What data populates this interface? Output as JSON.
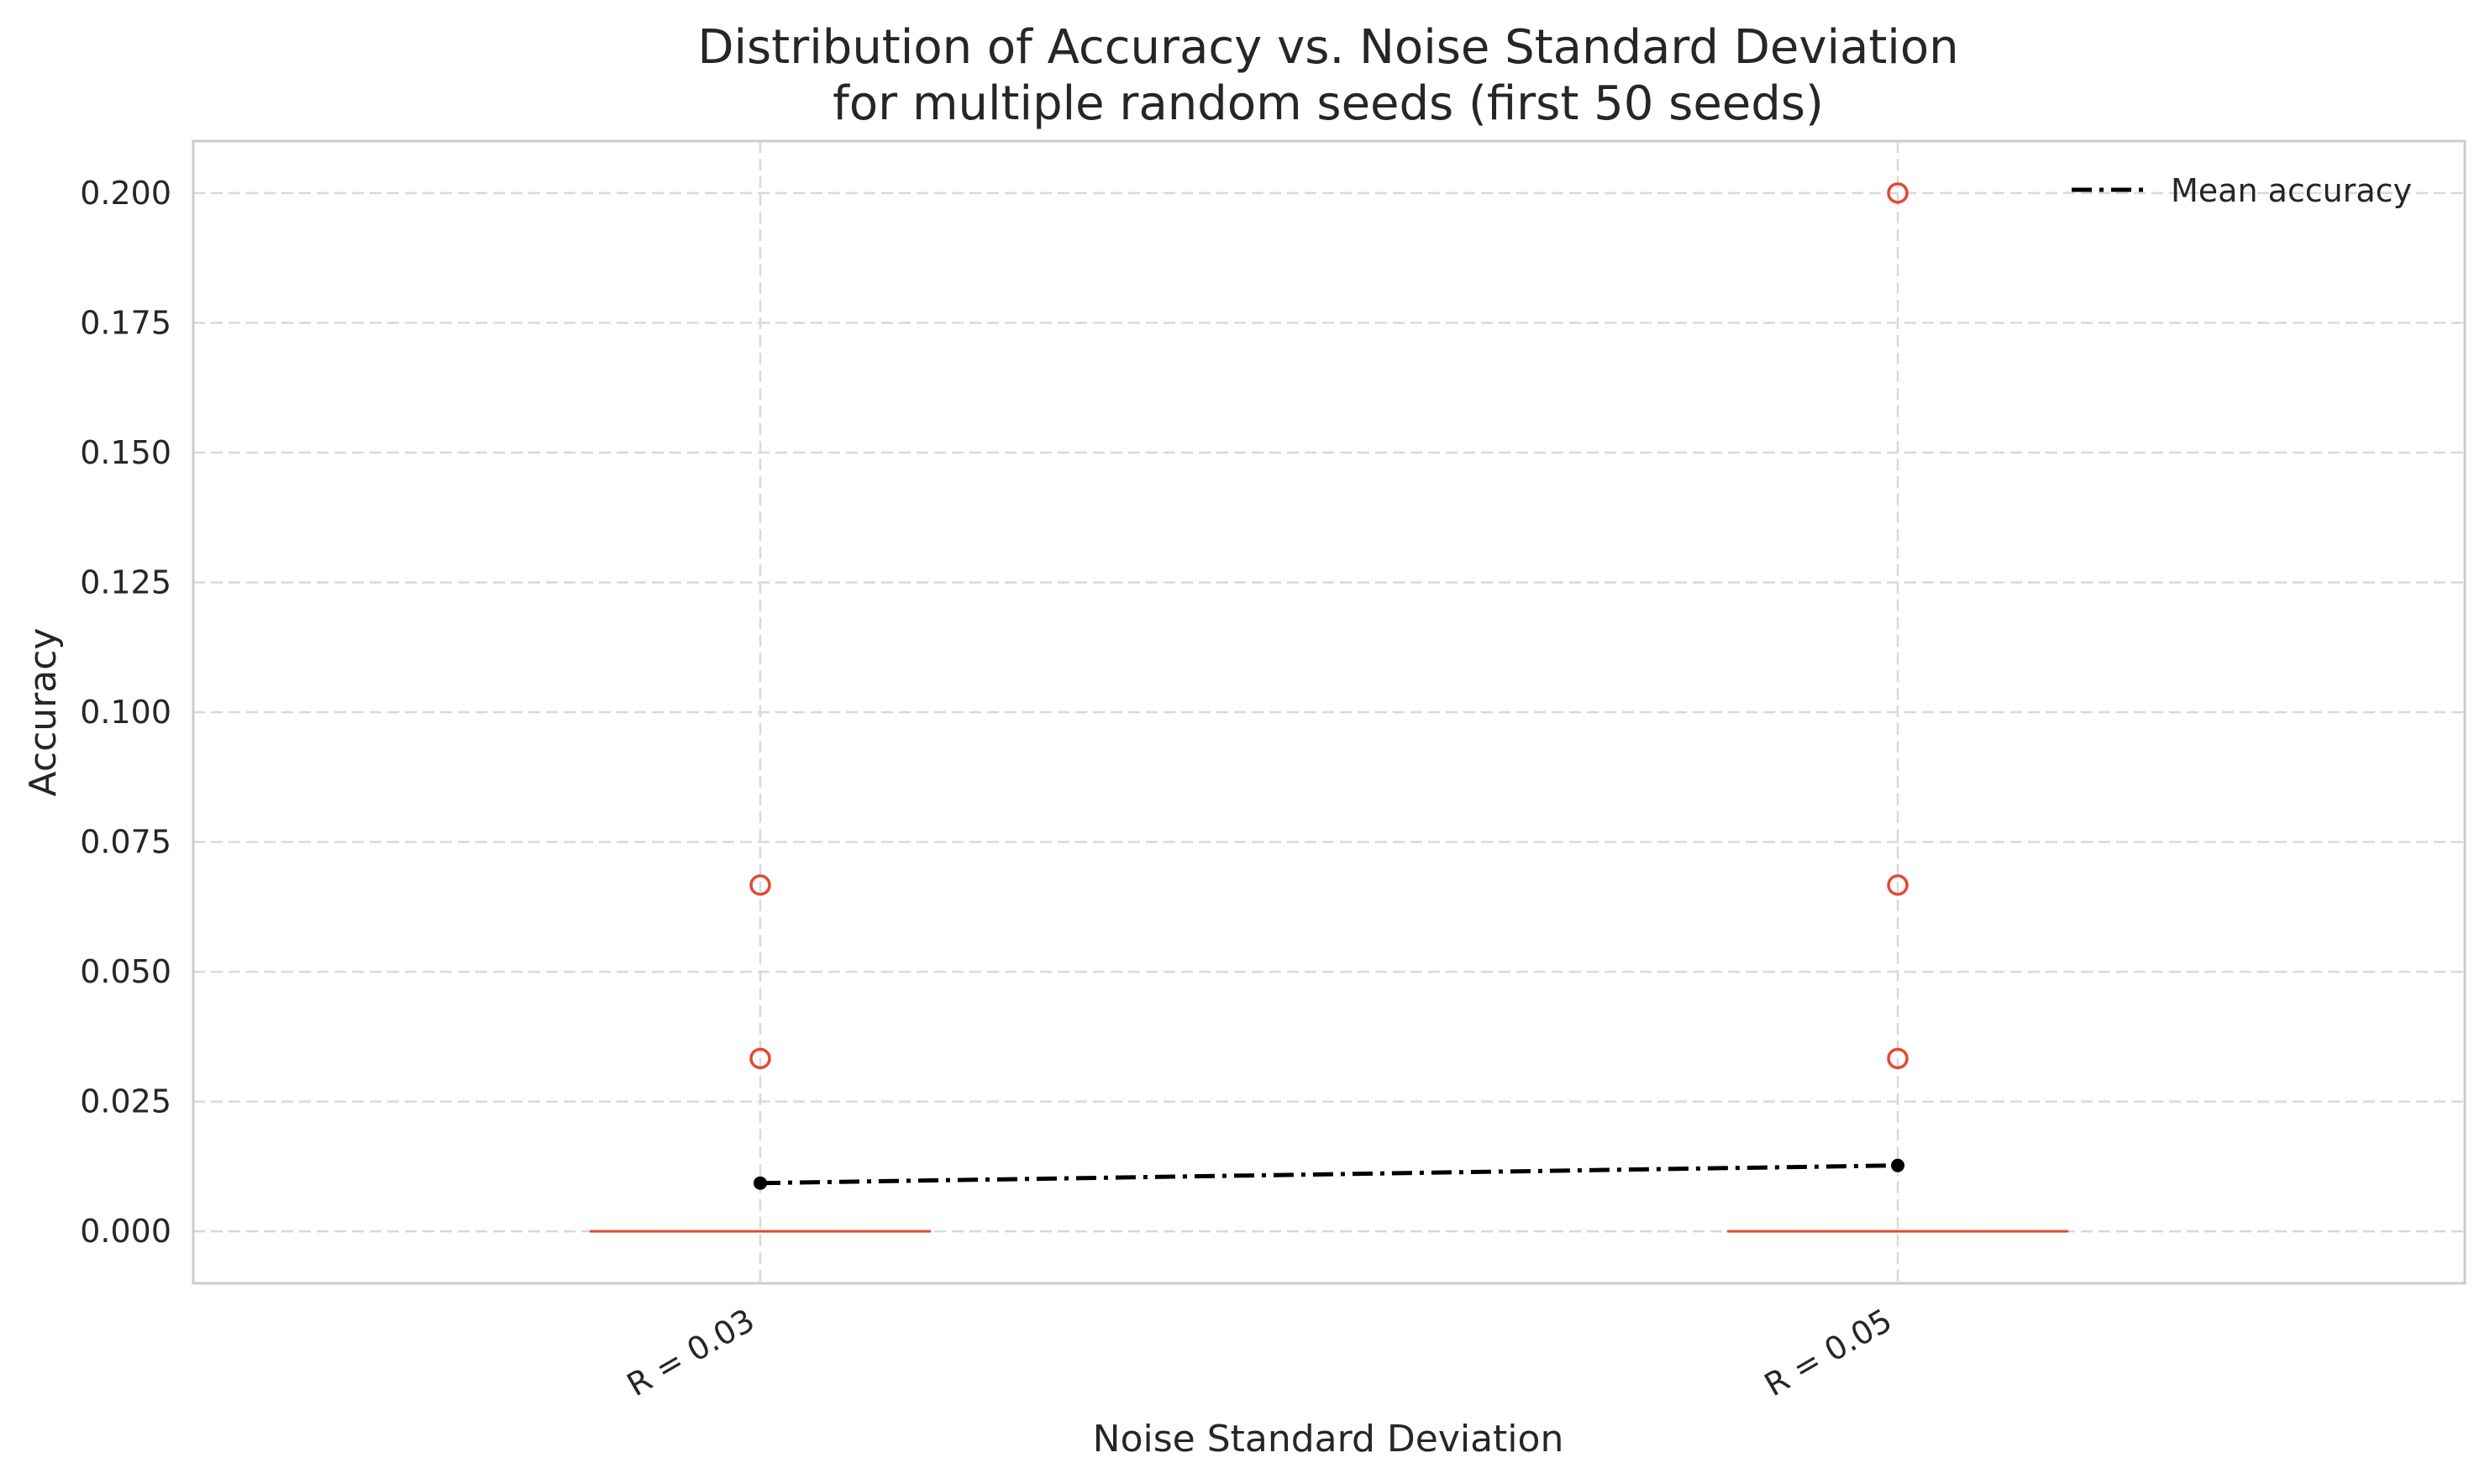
{
  "chart_data": {
    "type": "box",
    "title": "Distribution of Accuracy vs. Noise Standard Deviation",
    "subtitle": "for multiple random seeds (first 50 seeds)",
    "xlabel": "Noise Standard Deviation",
    "ylabel": "Accuracy",
    "categories": [
      "R = 0.03",
      "R = 0.05"
    ],
    "ylim": [
      -0.01,
      0.21
    ],
    "yticks": [
      0.0,
      0.025,
      0.05,
      0.075,
      0.1,
      0.125,
      0.15,
      0.175,
      0.2
    ],
    "ytick_labels": [
      "0.000",
      "0.025",
      "0.050",
      "0.075",
      "0.100",
      "0.125",
      "0.150",
      "0.175",
      "0.200"
    ],
    "grid": true,
    "legend": {
      "position": "top-right",
      "entries": [
        "Mean accuracy"
      ]
    },
    "boxes": [
      {
        "category": "R = 0.03",
        "q1": 0.0,
        "median": 0.0,
        "q3": 0.0,
        "whisker_low": 0.0,
        "whisker_high": 0.0,
        "outliers": [
          0.0333,
          0.0667
        ]
      },
      {
        "category": "R = 0.05",
        "q1": 0.0,
        "median": 0.0,
        "q3": 0.0,
        "whisker_low": 0.0,
        "whisker_high": 0.0,
        "outliers": [
          0.0333,
          0.0667,
          0.2
        ]
      }
    ],
    "series": [
      {
        "name": "Mean accuracy",
        "type": "line",
        "style": "dash-dot",
        "color": "#000000",
        "values": [
          0.0093,
          0.0127
        ]
      }
    ],
    "colors": {
      "box": "#e24a33",
      "outlier": "#e24a33",
      "grid": "#d9d9d9",
      "spine": "#cccccc",
      "mean": "#000000"
    }
  }
}
